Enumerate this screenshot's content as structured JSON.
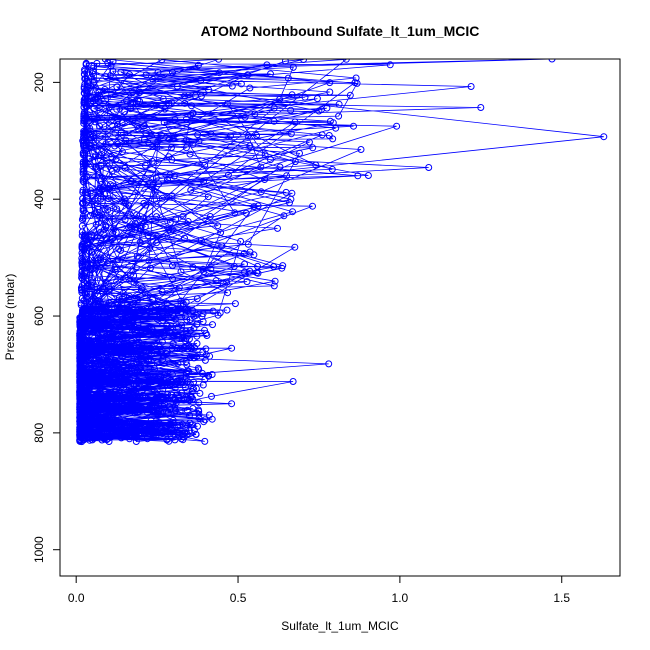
{
  "chart_data": {
    "type": "scatter",
    "title": "ATOM2 Northbound Sulfate_lt_1um_MCIC",
    "xlabel": "Sulfate_lt_1um_MCIC",
    "ylabel": "Pressure (mbar)",
    "xlim": [
      -0.05,
      1.68
    ],
    "ylim": [
      1045,
      160
    ],
    "y_reversed": true,
    "grid": false,
    "legend": "none",
    "x_ticks": [
      "0.0",
      "0.5",
      "1.0",
      "1.5"
    ],
    "y_ticks": [
      "200",
      "400",
      "600",
      "800",
      "1000"
    ],
    "series_color": "#0000ff",
    "marker": "open-circle",
    "connected": true,
    "sample_points": [
      {
        "x": 1.63,
        "y": 293
      },
      {
        "x": 1.47,
        "y": 160
      },
      {
        "x": 1.25,
        "y": 243
      },
      {
        "x": 1.22,
        "y": 207
      },
      {
        "x": 0.99,
        "y": 275
      },
      {
        "x": 0.97,
        "y": 170
      },
      {
        "x": 0.88,
        "y": 315
      },
      {
        "x": 0.87,
        "y": 360
      },
      {
        "x": 0.78,
        "y": 682
      },
      {
        "x": 0.76,
        "y": 290
      },
      {
        "x": 0.73,
        "y": 412
      },
      {
        "x": 0.67,
        "y": 712
      },
      {
        "x": 0.65,
        "y": 360
      },
      {
        "x": 0.56,
        "y": 515
      },
      {
        "x": 0.52,
        "y": 525
      },
      {
        "x": 0.48,
        "y": 750
      },
      {
        "x": 0.48,
        "y": 655
      },
      {
        "x": 0.42,
        "y": 700
      },
      {
        "x": 0.35,
        "y": 770
      },
      {
        "x": 0.28,
        "y": 812
      },
      {
        "x": 0.22,
        "y": 810
      },
      {
        "x": 0.15,
        "y": 805
      },
      {
        "x": 0.1,
        "y": 790
      },
      {
        "x": 0.05,
        "y": 812
      },
      {
        "x": 0.03,
        "y": 590
      },
      {
        "x": 0.03,
        "y": 655
      },
      {
        "x": 0.03,
        "y": 712
      },
      {
        "x": 0.04,
        "y": 740
      },
      {
        "x": 0.05,
        "y": 760
      },
      {
        "x": 0.04,
        "y": 785
      },
      {
        "x": 0.04,
        "y": 800
      },
      {
        "x": 0.06,
        "y": 345
      },
      {
        "x": 0.02,
        "y": 300
      },
      {
        "x": 0.05,
        "y": 185
      },
      {
        "x": 0.09,
        "y": 160
      },
      {
        "x": 0.15,
        "y": 250
      },
      {
        "x": 0.2,
        "y": 450
      },
      {
        "x": 0.12,
        "y": 520
      },
      {
        "x": 0.3,
        "y": 600
      },
      {
        "x": 0.25,
        "y": 680
      }
    ]
  }
}
